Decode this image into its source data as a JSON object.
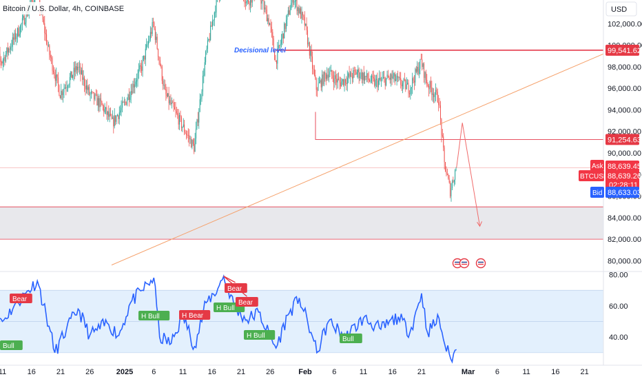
{
  "header": {
    "symbol_title": "Bitcoin / U.S. Dollar, 4h, COINBASE",
    "currency_button": "USD"
  },
  "colors": {
    "up": "#26a69a",
    "down": "#ef5350",
    "level_line": "#e5394a",
    "trend_line": "#f5a06a",
    "rsi_line": "#2962ff",
    "rsi_band": "#e3f0fd",
    "zone_fill": "#e8e8ec",
    "blue_text": "#2962ff",
    "bull": "#4caf50",
    "bear": "#e53945"
  },
  "chart_data": [
    {
      "type": "candlestick",
      "title": "Bitcoin / U.S. Dollar, 4h, COINBASE",
      "ylim": [
        79000,
        104200
      ],
      "y_ticks": [
        "102,000.00",
        "100,000.00",
        "98,000.00",
        "96,000.00",
        "94,000.00",
        "92,000.00",
        "90,000.00",
        "88,000.00",
        "86,000.00",
        "84,000.00",
        "82,000.00",
        "80,000.00"
      ],
      "x_ticks": [
        "11",
        "16",
        "21",
        "26",
        "2025",
        "6",
        "11",
        "16",
        "21",
        "26",
        "Feb",
        "6",
        "11",
        "16",
        "21",
        "Mar",
        "6",
        "11",
        "16",
        "21"
      ],
      "close_path_summary": [
        {
          "x": "Dec 9",
          "y": 99500
        },
        {
          "x": "Dec 11",
          "y": 98500
        },
        {
          "x": "Dec 14",
          "y": 101500
        },
        {
          "x": "Dec 17",
          "y": 105000
        },
        {
          "x": "Dec 19",
          "y": 99500
        },
        {
          "x": "Dec 21",
          "y": 95500
        },
        {
          "x": "Dec 24",
          "y": 98000
        },
        {
          "x": "Dec 26",
          "y": 95500
        },
        {
          "x": "Dec 28",
          "y": 94500
        },
        {
          "x": "Dec 30",
          "y": 92800
        },
        {
          "x": "Jan 1",
          "y": 94500
        },
        {
          "x": "Jan 4",
          "y": 98000
        },
        {
          "x": "Jan 6",
          "y": 102000
        },
        {
          "x": "Jan 8",
          "y": 95500
        },
        {
          "x": "Jan 10",
          "y": 93500
        },
        {
          "x": "Jan 13",
          "y": 90500
        },
        {
          "x": "Jan 15",
          "y": 99000
        },
        {
          "x": "Jan 17",
          "y": 104500
        },
        {
          "x": "Jan 20",
          "y": 107000
        },
        {
          "x": "Jan 22",
          "y": 104000
        },
        {
          "x": "Jan 24",
          "y": 105000
        },
        {
          "x": "Jan 26",
          "y": 102000
        },
        {
          "x": "Jan 27",
          "y": 98500
        },
        {
          "x": "Jan 30",
          "y": 104500
        },
        {
          "x": "Feb 1",
          "y": 102000
        },
        {
          "x": "Feb 3",
          "y": 96000
        },
        {
          "x": "Feb 5",
          "y": 97500
        },
        {
          "x": "Feb 7",
          "y": 96500
        },
        {
          "x": "Feb 10",
          "y": 97500
        },
        {
          "x": "Feb 13",
          "y": 96500
        },
        {
          "x": "Feb 16",
          "y": 97000
        },
        {
          "x": "Feb 19",
          "y": 96000
        },
        {
          "x": "Feb 21",
          "y": 98500
        },
        {
          "x": "Feb 22",
          "y": 96500
        },
        {
          "x": "Feb 24",
          "y": 95000
        },
        {
          "x": "Feb 25",
          "y": 89000
        },
        {
          "x": "Feb 26",
          "y": 86500
        },
        {
          "x": "Feb 27",
          "y": 88639
        }
      ],
      "annotations": {
        "decisional_level_label": "Decisional level",
        "decisional_level": 99541.62,
        "support_level": 91254.63,
        "zone_top": 85000,
        "zone_bottom": 82000,
        "projection": [
          {
            "x": "Feb 27",
            "y": 88639
          },
          {
            "x": "Feb 28",
            "y": 92800
          },
          {
            "x": "Mar 3",
            "y": 83200
          }
        ]
      },
      "price_labels": {
        "level_high": "99,541.62",
        "level_support": "91,254.63",
        "ask_label": "Ask",
        "ask_price": "88,639.45",
        "symbol_label": "BTCUSD",
        "last_price": "88,639.26",
        "countdown": "02:28:11",
        "bid_label": "Bid",
        "bid_price": "88,633.03"
      }
    },
    {
      "type": "line",
      "name": "RSI",
      "ylim": [
        22,
        82
      ],
      "y_ticks": [
        "80.00",
        "60.00",
        "40.00"
      ],
      "band": [
        30,
        70
      ],
      "points": [
        {
          "x": "Dec 9",
          "y": 62
        },
        {
          "x": "Dec 11",
          "y": 50
        },
        {
          "x": "Dec 13",
          "y": 60
        },
        {
          "x": "Dec 15",
          "y": 68
        },
        {
          "x": "Dec 17",
          "y": 76
        },
        {
          "x": "Dec 19",
          "y": 47
        },
        {
          "x": "Dec 20",
          "y": 30
        },
        {
          "x": "Dec 22",
          "y": 45
        },
        {
          "x": "Dec 24",
          "y": 58
        },
        {
          "x": "Dec 26",
          "y": 41
        },
        {
          "x": "Dec 29",
          "y": 49
        },
        {
          "x": "Dec 31",
          "y": 41
        },
        {
          "x": "Jan 2",
          "y": 62
        },
        {
          "x": "Jan 4",
          "y": 70
        },
        {
          "x": "Jan 6",
          "y": 78
        },
        {
          "x": "Jan 7",
          "y": 40
        },
        {
          "x": "Jan 9",
          "y": 36
        },
        {
          "x": "Jan 11",
          "y": 54
        },
        {
          "x": "Jan 13",
          "y": 34
        },
        {
          "x": "Jan 15",
          "y": 62
        },
        {
          "x": "Jan 17",
          "y": 71
        },
        {
          "x": "Jan 18",
          "y": 79
        },
        {
          "x": "Jan 20",
          "y": 58
        },
        {
          "x": "Jan 22",
          "y": 51
        },
        {
          "x": "Jan 24",
          "y": 56
        },
        {
          "x": "Jan 26",
          "y": 40
        },
        {
          "x": "Jan 27",
          "y": 33
        },
        {
          "x": "Jan 29",
          "y": 54
        },
        {
          "x": "Jan 31",
          "y": 65
        },
        {
          "x": "Feb 2",
          "y": 43
        },
        {
          "x": "Feb 3",
          "y": 30
        },
        {
          "x": "Feb 5",
          "y": 50
        },
        {
          "x": "Feb 8",
          "y": 40
        },
        {
          "x": "Feb 11",
          "y": 52
        },
        {
          "x": "Feb 14",
          "y": 45
        },
        {
          "x": "Feb 17",
          "y": 53
        },
        {
          "x": "Feb 19",
          "y": 43
        },
        {
          "x": "Feb 21",
          "y": 68
        },
        {
          "x": "Feb 22",
          "y": 43
        },
        {
          "x": "Feb 24",
          "y": 52
        },
        {
          "x": "Feb 25",
          "y": 35
        },
        {
          "x": "Feb 26",
          "y": 26
        },
        {
          "x": "Feb 27",
          "y": 32
        }
      ],
      "signals": [
        {
          "label": "Bear",
          "kind": "bear",
          "x": "Dec 10"
        },
        {
          "label": "H Bull",
          "kind": "bull",
          "x": "Jan 3"
        },
        {
          "label": "H Bear",
          "kind": "bear",
          "x": "Jan 14"
        },
        {
          "label": "Bear",
          "kind": "bear",
          "x": "Jan 19"
        },
        {
          "label": "H Bull",
          "kind": "bull",
          "x": "Jan 18"
        },
        {
          "label": "Bear",
          "kind": "bear",
          "x": "Jan 22"
        },
        {
          "label": "H Bull",
          "kind": "bull",
          "x": "Jan 24"
        },
        {
          "label": "Bull",
          "kind": "bull",
          "x": "Feb 8"
        },
        {
          "label": "Bull",
          "kind": "bull",
          "x": "Dec 7"
        }
      ]
    }
  ]
}
